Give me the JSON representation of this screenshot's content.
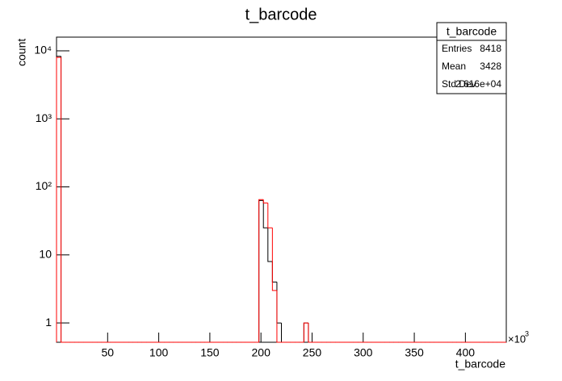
{
  "chart_data": {
    "type": "histogram",
    "title": "t_barcode",
    "x_label": "t_barcode",
    "y_label": "count",
    "x_multiplier": {
      "base": "×10",
      "exponent": "3"
    },
    "log_y": true,
    "xlim": [
      0,
      440
    ],
    "ylim": [
      0.52,
      15900
    ],
    "xticks": [
      50,
      100,
      150,
      200,
      250,
      300,
      350,
      400
    ],
    "yticks": [
      1,
      10,
      {
        "value": 100,
        "label": "10²"
      },
      {
        "value": 1000,
        "label": "10³"
      },
      {
        "value": 10000,
        "label": "10⁴"
      }
    ],
    "bins": [
      0,
      4.4,
      8.8,
      13.2,
      17.6,
      22,
      26.4,
      30.8,
      35.2,
      39.6,
      44,
      48.4,
      52.8,
      57.2,
      61.6,
      66,
      70.4,
      74.8,
      79.2,
      83.6,
      88,
      92.4,
      96.8,
      101.2,
      105.6,
      110,
      114.4,
      118.8,
      123.2,
      127.6,
      132,
      136.4,
      140.8,
      145.2,
      149.6,
      154,
      158.4,
      162.8,
      167.2,
      171.6,
      176,
      180.4,
      184.8,
      189.2,
      193.6,
      198,
      202.4,
      206.8,
      211.2,
      215.6,
      220,
      224.4,
      228.8,
      233.2,
      237.6,
      242,
      246.4,
      250.8,
      255.2,
      259.6,
      264,
      268.4,
      272.8,
      277.2,
      281.6,
      286,
      290.4,
      294.8,
      299.2,
      303.6,
      308,
      312.4,
      316.8,
      321.2,
      325.6,
      330,
      334.4,
      338.8,
      343.2,
      347.6,
      352,
      356.4,
      360.8,
      365.2,
      369.6,
      374,
      378.4,
      382.8,
      387.2,
      391.6,
      396,
      400.4,
      404.8,
      409.2,
      413.6,
      418,
      422.4,
      426.8,
      431.2,
      435.6,
      440
    ],
    "series": [
      {
        "color": "#000000",
        "values": [
          8300,
          0,
          0,
          0,
          0,
          0,
          0,
          0,
          0,
          0,
          0,
          0,
          0,
          0,
          0,
          0,
          0,
          0,
          0,
          0,
          0,
          0,
          0,
          0,
          0,
          0,
          0,
          0,
          0,
          0,
          0,
          0,
          0,
          0,
          0,
          0,
          0,
          0,
          0,
          0,
          0,
          0,
          0,
          0,
          0,
          63,
          25,
          8,
          4,
          1,
          0,
          0,
          0,
          0,
          0,
          1,
          0,
          0,
          0,
          0,
          0,
          0,
          0,
          0,
          0,
          0,
          0,
          0,
          0,
          0,
          0,
          0,
          0,
          0,
          0,
          0,
          0,
          0,
          0,
          0,
          0,
          0,
          0,
          0,
          0,
          0,
          0,
          0,
          0,
          0,
          0,
          0,
          0,
          0,
          0,
          0,
          0,
          0,
          0,
          0
        ]
      },
      {
        "color": "#ff0000",
        "values": [
          8000,
          0,
          0,
          0,
          0,
          0,
          0,
          0,
          0,
          0,
          0,
          0,
          0,
          0,
          0,
          0,
          0,
          0,
          0,
          0,
          0,
          0,
          0,
          0,
          0,
          0,
          0,
          0,
          0,
          0,
          0,
          0,
          0,
          0,
          0,
          0,
          0,
          0,
          0,
          0,
          0,
          0,
          0,
          0,
          0,
          65,
          58,
          25,
          3,
          0,
          0,
          0,
          0,
          0,
          0,
          1,
          0,
          0,
          0,
          0,
          0,
          0,
          0,
          0,
          0,
          0,
          0,
          0,
          0,
          0,
          0,
          0,
          0,
          0,
          0,
          0,
          0,
          0,
          0,
          0,
          0,
          0,
          0,
          0,
          0,
          0,
          0,
          0,
          0,
          0,
          0,
          0,
          0,
          0,
          0,
          0,
          0,
          0,
          0,
          0
        ]
      }
    ],
    "stats": {
      "title": "t_barcode",
      "rows": [
        [
          "Entries",
          "8418"
        ],
        [
          "Mean",
          "3428"
        ],
        [
          "Std Dev",
          "2.616e+04"
        ]
      ]
    }
  }
}
